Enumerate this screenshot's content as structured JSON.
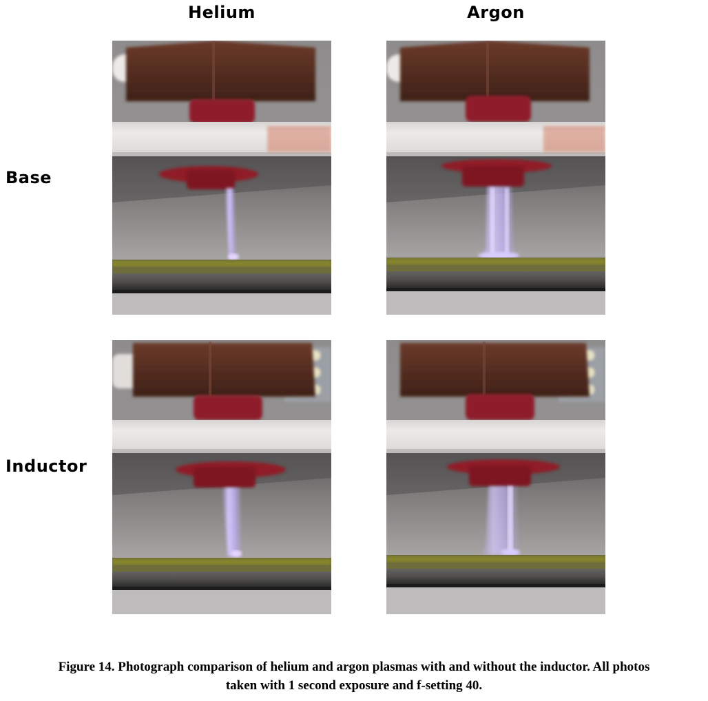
{
  "columns": {
    "helium": "Helium",
    "argon": "Argon"
  },
  "rows": {
    "base": "Base",
    "inductor": "Inductor"
  },
  "caption": {
    "line1": "Figure 14. Photograph comparison of helium and argon plasmas with and without the inductor. All photos",
    "line2": "taken with 1 second exposure and f-setting 40."
  },
  "colors": {
    "plasma": "#c8b8ff",
    "electrode": "#5a2e22",
    "ceramic_plate": "#e8e6e4",
    "red_residue": "#9a1e2a",
    "ground_plate": "#7d7a2a"
  }
}
